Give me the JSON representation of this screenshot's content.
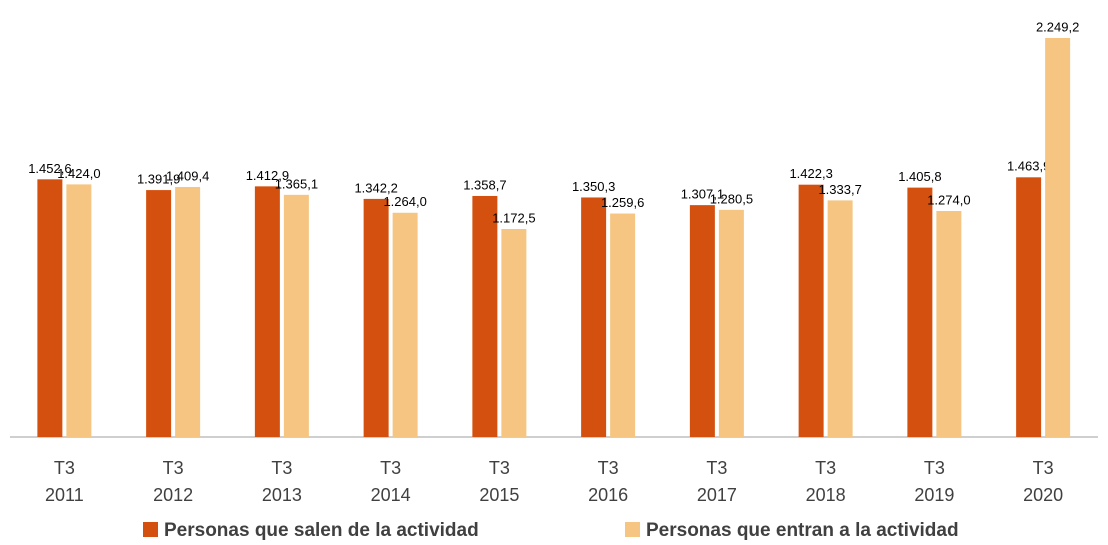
{
  "chart_data": {
    "type": "bar",
    "categories": [
      [
        "T3",
        "2011"
      ],
      [
        "T3",
        "2012"
      ],
      [
        "T3",
        "2013"
      ],
      [
        "T3",
        "2014"
      ],
      [
        "T3",
        "2015"
      ],
      [
        "T3",
        "2016"
      ],
      [
        "T3",
        "2017"
      ],
      [
        "T3",
        "2018"
      ],
      [
        "T3",
        "2019"
      ],
      [
        "T3",
        "2020"
      ]
    ],
    "series": [
      {
        "name": "Personas que salen de la actividad",
        "color": "#d4500f",
        "values": [
          1452.6,
          1391.9,
          1412.9,
          1342.2,
          1358.7,
          1350.3,
          1307.1,
          1422.3,
          1405.8,
          1463.9
        ],
        "value_labels": [
          "1.452,6",
          "1.391,9",
          "1.412,9",
          "1.342,2",
          "1.358,7",
          "1.350,3",
          "1.307,1",
          "1.422,3",
          "1.405,8",
          "1.463,9"
        ]
      },
      {
        "name": "Personas que entran a la actividad",
        "color": "#f5c581",
        "values": [
          1424.0,
          1409.4,
          1365.1,
          1264.0,
          1172.5,
          1259.6,
          1280.5,
          1333.7,
          1274.0,
          2249.2
        ],
        "value_labels": [
          "1.424,0",
          "1.409,4",
          "1.365,1",
          "1.264,0",
          "1.172,5",
          "1.259,6",
          "1.280,5",
          "1.333,7",
          "1.274,0",
          "2.249,2"
        ]
      }
    ]
  }
}
